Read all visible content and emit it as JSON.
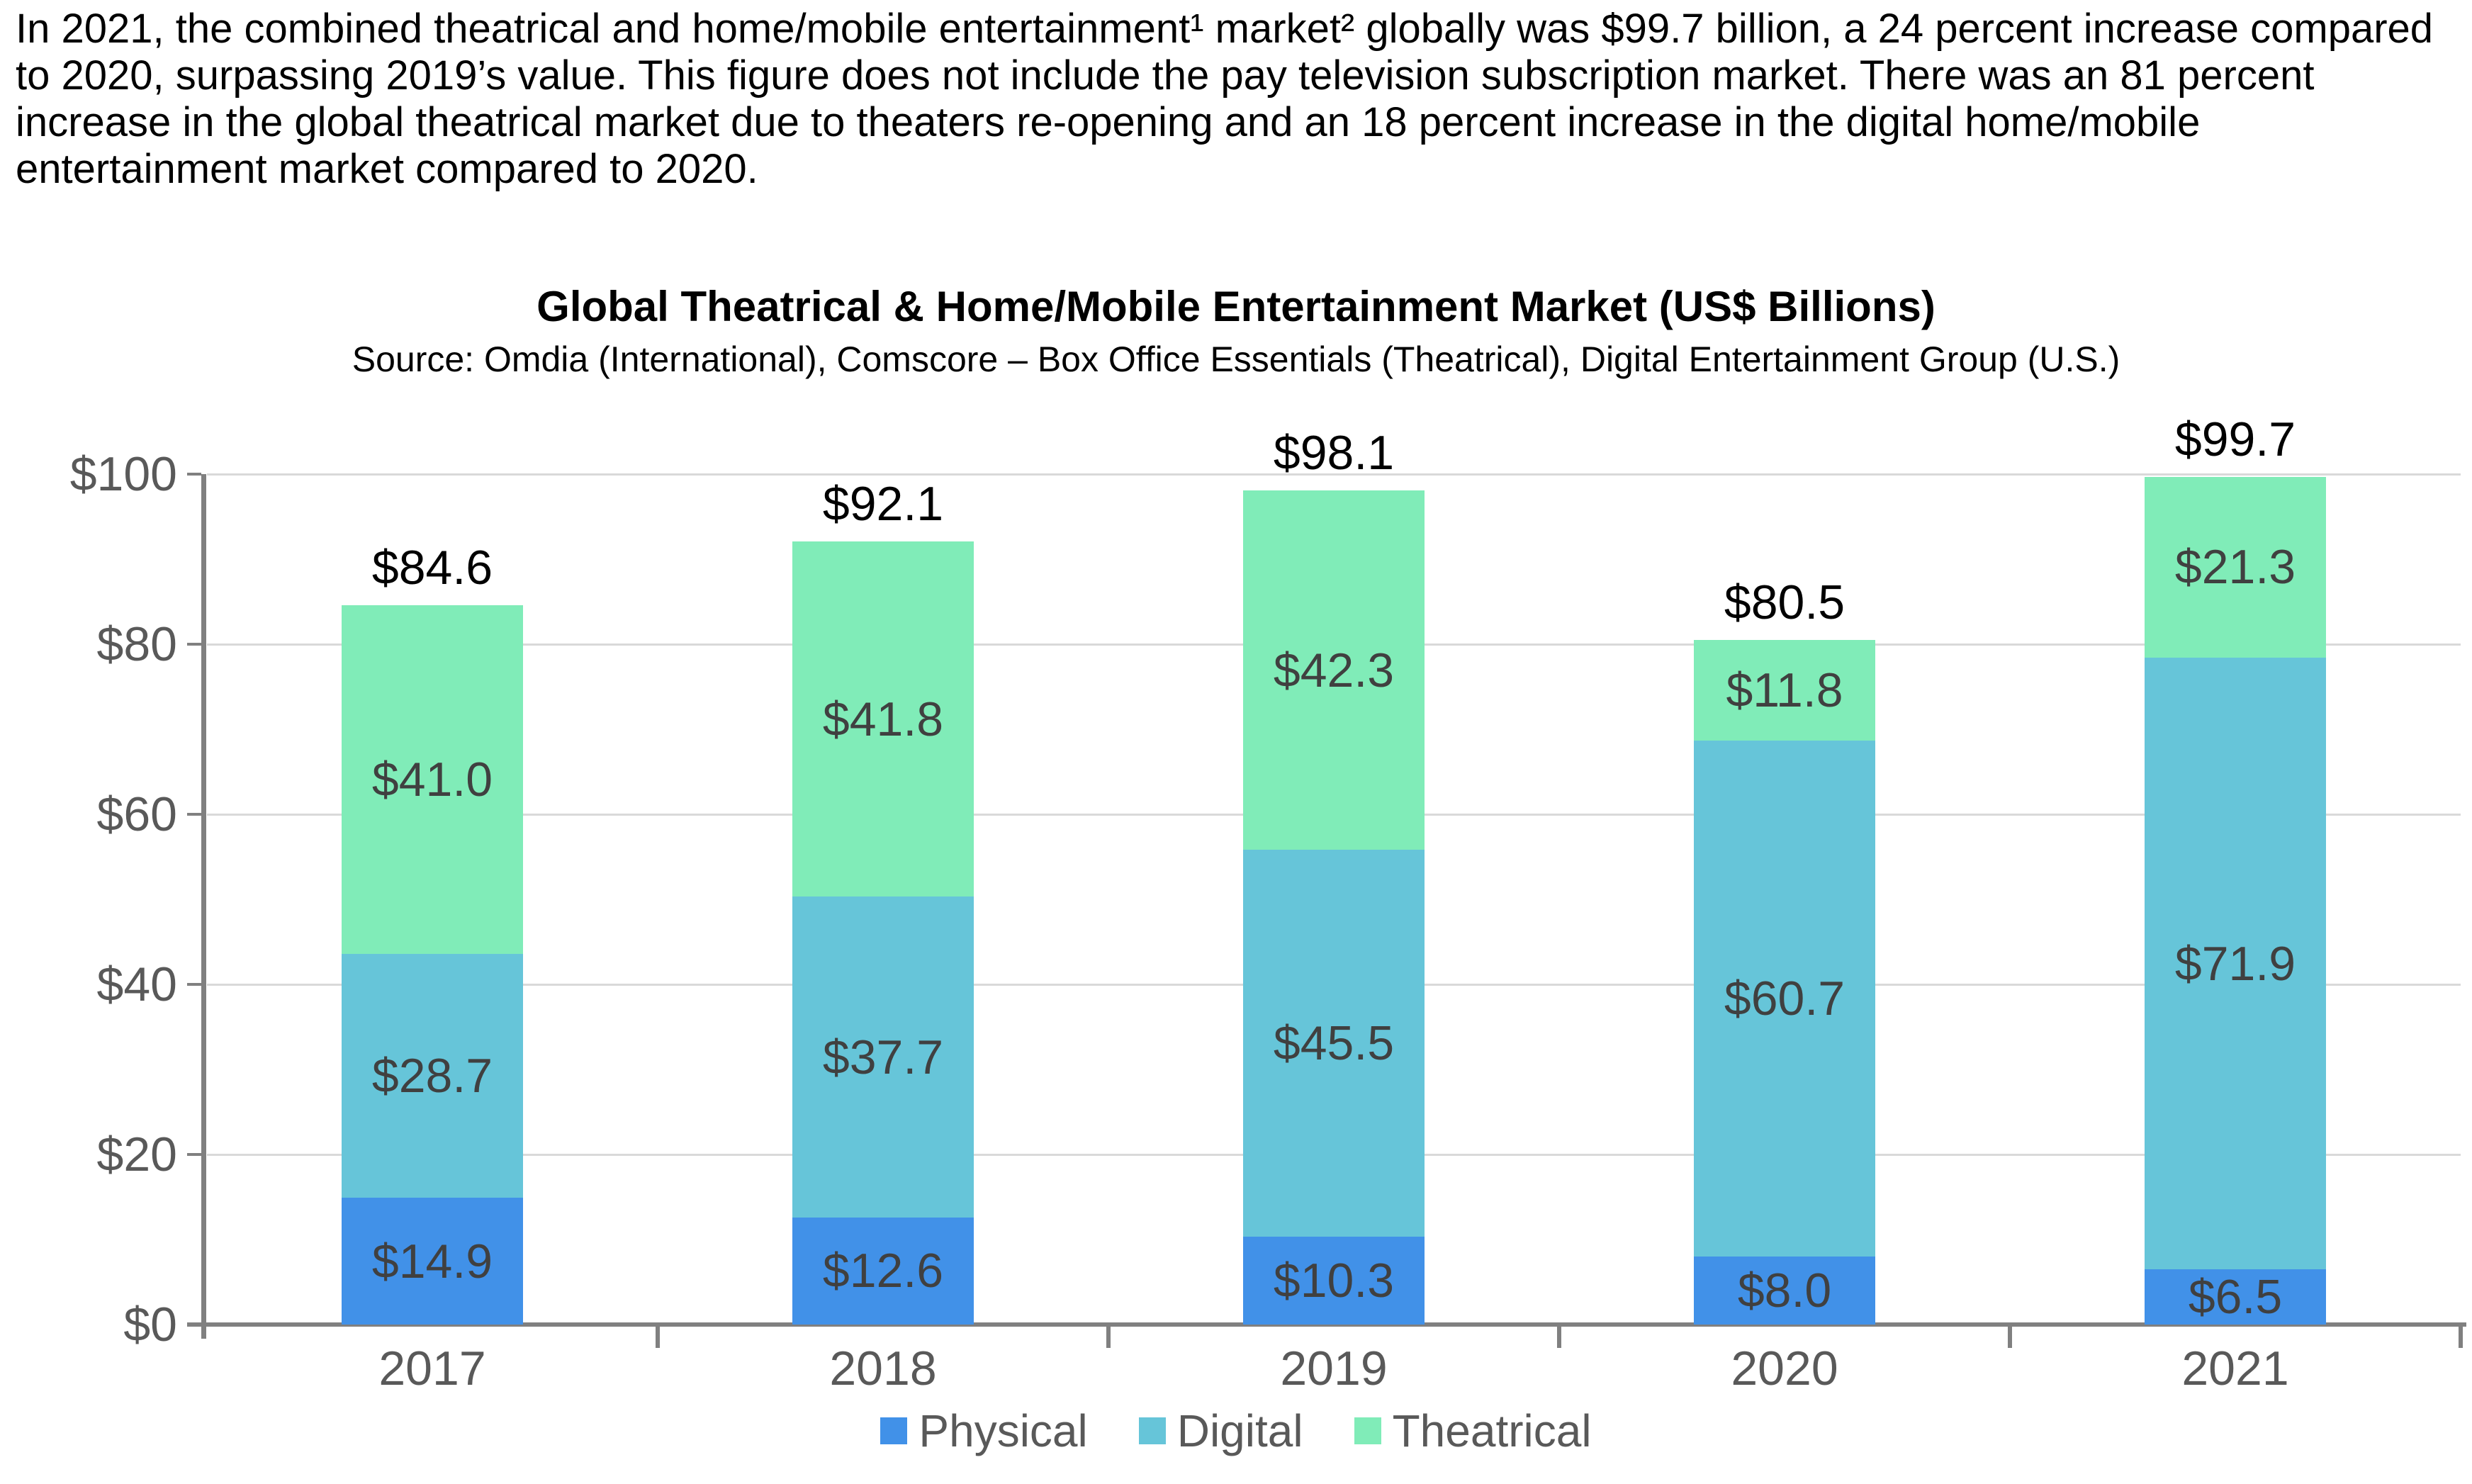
{
  "intro": "In 2021, the combined theatrical and home/mobile entertainment¹ market² globally was $99.7 billion, a 24 percent increase compared to 2020, surpassing 2019’s value. This figure does not include the pay television subscription market. There was an 81 percent increase in the global theatrical market due to theaters re-opening and an 18 percent increase in the digital home/mobile entertainment market compared to 2020.",
  "chart_data": {
    "type": "bar",
    "stacked": true,
    "title": "Global Theatrical & Home/Mobile Entertainment Market (US$ Billions)",
    "source": "Source: Omdia (International), Comscore – Box Office Essentials (Theatrical), Digital Entertainment Group (U.S.)",
    "categories": [
      "2017",
      "2018",
      "2019",
      "2020",
      "2021"
    ],
    "series": [
      {
        "name": "Physical",
        "color": "#4191E8",
        "values": [
          14.9,
          12.6,
          10.3,
          8.0,
          6.5
        ]
      },
      {
        "name": "Digital",
        "color": "#66C5D9",
        "values": [
          28.7,
          37.7,
          45.5,
          60.7,
          71.9
        ]
      },
      {
        "name": "Theatrical",
        "color": "#80ECB8",
        "values": [
          41.0,
          41.8,
          42.3,
          11.8,
          21.3
        ]
      }
    ],
    "totals": [
      84.6,
      92.1,
      98.1,
      80.5,
      99.7
    ],
    "total_labels": [
      "$84.6",
      "$92.1",
      "$98.1",
      "$80.5",
      "$99.7"
    ],
    "segment_labels": {
      "Physical": [
        "$14.9",
        "$12.6",
        "$10.3",
        "$8.0",
        "$6.5"
      ],
      "Digital": [
        "$28.7",
        "$37.7",
        "$45.5",
        "$60.7",
        "$71.9"
      ],
      "Theatrical": [
        "$41.0",
        "$41.8",
        "$42.3",
        "$11.8",
        "$21.3"
      ]
    },
    "y_ticks": [
      "$0",
      "$20",
      "$40",
      "$60",
      "$80",
      "$100"
    ],
    "ylim": [
      0,
      100
    ],
    "xlabel": "",
    "ylabel": "",
    "grid": true,
    "legend_position": "bottom",
    "legend_entries": [
      "Physical",
      "Digital",
      "Theatrical"
    ],
    "colors": {
      "axis": "#808080",
      "gridline": "#D9D9D9",
      "axis_label": "#595959",
      "bar_value_text": "#404040",
      "total_text": "#000000"
    }
  }
}
